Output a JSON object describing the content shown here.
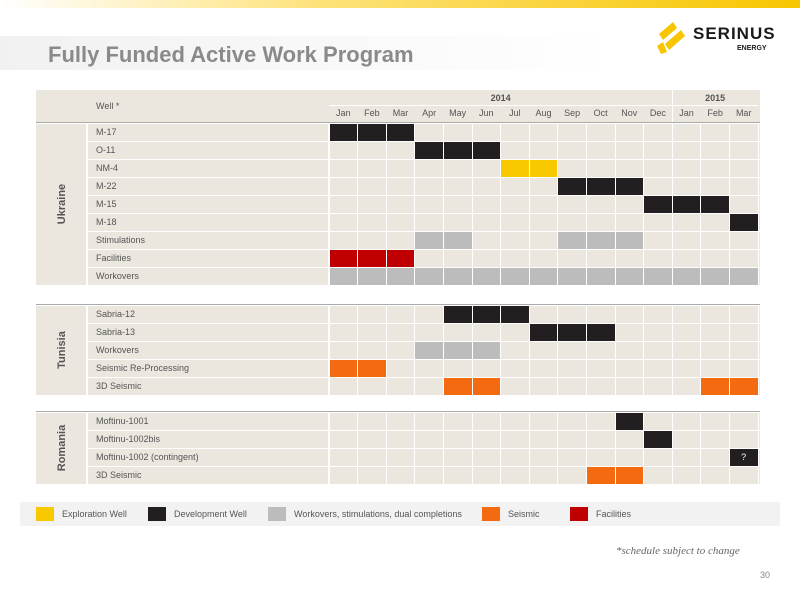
{
  "header": {
    "title": "Fully Funded Active Work Program",
    "logo_name": "SERINUS",
    "logo_sub": "ENERGY"
  },
  "colors": {
    "exploration": "#f9c900",
    "development": "#231f20",
    "workover": "#bcbcbc",
    "seismic": "#f46a10",
    "facilities": "#c00000"
  },
  "table": {
    "well_header": "Well *",
    "years": [
      {
        "label": "2014",
        "start": 0,
        "span": 12
      },
      {
        "label": "2015",
        "start": 12,
        "span": 3
      }
    ],
    "months": [
      "Jan",
      "Feb",
      "Mar",
      "Apr",
      "May",
      "Jun",
      "Jul",
      "Aug",
      "Sep",
      "Oct",
      "Nov",
      "Dec",
      "Jan",
      "Feb",
      "Mar"
    ]
  },
  "sections": [
    {
      "name": "Ukraine",
      "rows": [
        {
          "label": "M-17",
          "bars": [
            {
              "start": 0,
              "end": 3,
              "type": "development"
            }
          ]
        },
        {
          "label": "O-11",
          "bars": [
            {
              "start": 3,
              "end": 6,
              "type": "development"
            }
          ]
        },
        {
          "label": "NM-4",
          "bars": [
            {
              "start": 6,
              "end": 8,
              "type": "exploration"
            }
          ]
        },
        {
          "label": "M-22",
          "bars": [
            {
              "start": 8,
              "end": 11,
              "type": "development"
            }
          ]
        },
        {
          "label": "M-15",
          "bars": [
            {
              "start": 11,
              "end": 14,
              "type": "development"
            }
          ]
        },
        {
          "label": "M-18",
          "bars": [
            {
              "start": 14,
              "end": 15,
              "type": "development"
            }
          ]
        },
        {
          "label": "Stimulations",
          "bars": [
            {
              "start": 3,
              "end": 5,
              "type": "workover"
            },
            {
              "start": 8,
              "end": 11,
              "type": "workover"
            }
          ]
        },
        {
          "label": "Facilities",
          "bars": [
            {
              "start": 0,
              "end": 3,
              "type": "facilities"
            }
          ]
        },
        {
          "label": "Workovers",
          "bars": [
            {
              "start": 0,
              "end": 15,
              "type": "workover"
            }
          ]
        }
      ]
    },
    {
      "name": "Tunisia",
      "rows": [
        {
          "label": "Sabria-12",
          "bars": [
            {
              "start": 4,
              "end": 7,
              "type": "development"
            }
          ]
        },
        {
          "label": "Sabria-13",
          "bars": [
            {
              "start": 7,
              "end": 10,
              "type": "development"
            }
          ]
        },
        {
          "label": "Workovers",
          "bars": [
            {
              "start": 3,
              "end": 6,
              "type": "workover"
            }
          ]
        },
        {
          "label": "Seismic Re-Processing",
          "bars": [
            {
              "start": 0,
              "end": 2,
              "type": "seismic"
            }
          ]
        },
        {
          "label": "3D Seismic",
          "bars": [
            {
              "start": 4,
              "end": 6,
              "type": "seismic"
            },
            {
              "start": 13,
              "end": 15,
              "type": "seismic"
            }
          ]
        }
      ]
    },
    {
      "name": "Romania",
      "rows": [
        {
          "label": "Moftinu-1001",
          "bars": [
            {
              "start": 10,
              "end": 11,
              "type": "development"
            }
          ]
        },
        {
          "label": "Moftinu-1002bis",
          "bars": [
            {
              "start": 11,
              "end": 12,
              "type": "development"
            }
          ]
        },
        {
          "label": "Moftinu-1002 (contingent)",
          "bars": [
            {
              "start": 14,
              "end": 15,
              "type": "development",
              "text": "?"
            }
          ]
        },
        {
          "label": "3D Seismic",
          "bars": [
            {
              "start": 9,
              "end": 11,
              "type": "seismic"
            }
          ]
        }
      ]
    }
  ],
  "legend": [
    {
      "label": "Exploration Well",
      "type": "exploration"
    },
    {
      "label": "Development Well",
      "type": "development"
    },
    {
      "label": "Workovers, stimulations, dual completions",
      "type": "workover"
    },
    {
      "label": "Seismic",
      "type": "seismic"
    },
    {
      "label": "Facilities",
      "type": "facilities"
    }
  ],
  "footer": {
    "note": "*schedule subject to change",
    "page_number": "30"
  }
}
